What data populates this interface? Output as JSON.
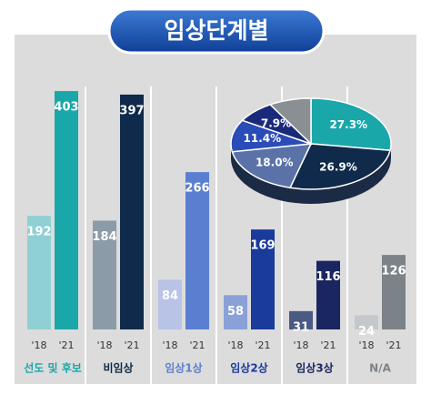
{
  "chart_data": [
    {
      "type": "bar",
      "title": "임상단계별",
      "categories": [
        "선도 및 후보",
        "비임상",
        "임상1상",
        "임상2상",
        "임상3상",
        "N/A"
      ],
      "series": [
        {
          "name": "'18",
          "colors": [
            "#8fd0d4",
            "#8c9ba8",
            "#b8c3e6",
            "#8aa0d8",
            "#4a5a82",
            "#c5c8cb"
          ],
          "values": [
            192,
            184,
            84,
            58,
            31,
            24
          ]
        },
        {
          "name": "'21",
          "colors": [
            "#1aa7a9",
            "#0f2a4a",
            "#5b7fd0",
            "#1a3a9c",
            "#1a2660",
            "#7c8388"
          ],
          "values": [
            403,
            397,
            266,
            169,
            116,
            126
          ]
        }
      ]
    },
    {
      "type": "pie",
      "values": [
        27.3,
        26.9,
        18.0,
        11.4,
        7.9,
        8.5
      ],
      "value_labels": [
        "27.3%",
        "26.9%",
        "18.0%",
        "11.4%",
        "7.9%",
        null
      ],
      "colors": [
        "#1aa7a9",
        "#0f2a4a",
        "#5b72a8",
        "#2a4cb8",
        "#1a2a7a",
        "#8a8f94"
      ]
    }
  ]
}
